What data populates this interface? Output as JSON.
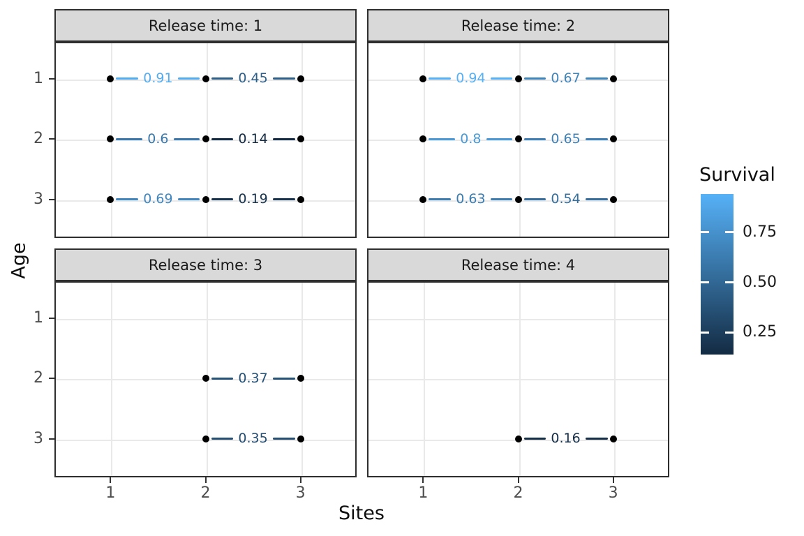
{
  "chart_data": {
    "type": "scatter",
    "subtype": "faceted labeled-segment plot (ggplot style)",
    "title": "",
    "xlabel": "Sites",
    "ylabel": "Age",
    "x_ticks": [
      "1",
      "2",
      "3"
    ],
    "y_ticks": [
      "1",
      "2",
      "3"
    ],
    "xlim": [
      0.41,
      3.59
    ],
    "ylim": [
      0.39,
      3.64
    ],
    "y_axis_direction": "age 1 at top, increasing downward",
    "grid": "major gridlines only, light grey on white panels",
    "facets": [
      {
        "label": "Release time: 1",
        "segments": [
          {
            "age": 1,
            "x1": 1,
            "x2": 2,
            "value": 0.91,
            "label": "0.91"
          },
          {
            "age": 1,
            "x1": 2,
            "x2": 3,
            "value": 0.45,
            "label": "0.45"
          },
          {
            "age": 2,
            "x1": 1,
            "x2": 2,
            "value": 0.6,
            "label": "0.6"
          },
          {
            "age": 2,
            "x1": 2,
            "x2": 3,
            "value": 0.14,
            "label": "0.14"
          },
          {
            "age": 3,
            "x1": 1,
            "x2": 2,
            "value": 0.69,
            "label": "0.69"
          },
          {
            "age": 3,
            "x1": 2,
            "x2": 3,
            "value": 0.19,
            "label": "0.19"
          }
        ]
      },
      {
        "label": "Release time: 2",
        "segments": [
          {
            "age": 1,
            "x1": 1,
            "x2": 2,
            "value": 0.94,
            "label": "0.94"
          },
          {
            "age": 1,
            "x1": 2,
            "x2": 3,
            "value": 0.67,
            "label": "0.67"
          },
          {
            "age": 2,
            "x1": 1,
            "x2": 2,
            "value": 0.8,
            "label": "0.8"
          },
          {
            "age": 2,
            "x1": 2,
            "x2": 3,
            "value": 0.65,
            "label": "0.65"
          },
          {
            "age": 3,
            "x1": 1,
            "x2": 2,
            "value": 0.63,
            "label": "0.63"
          },
          {
            "age": 3,
            "x1": 2,
            "x2": 3,
            "value": 0.54,
            "label": "0.54"
          }
        ]
      },
      {
        "label": "Release time: 3",
        "segments": [
          {
            "age": 2,
            "x1": 2,
            "x2": 3,
            "value": 0.37,
            "label": "0.37"
          },
          {
            "age": 3,
            "x1": 2,
            "x2": 3,
            "value": 0.35,
            "label": "0.35"
          }
        ]
      },
      {
        "label": "Release time: 4",
        "segments": [
          {
            "age": 3,
            "x1": 2,
            "x2": 3,
            "value": 0.16,
            "label": "0.16"
          }
        ]
      }
    ],
    "legend": {
      "title": "Survival",
      "position": "right",
      "tick_labels": [
        "0.75",
        "0.50",
        "0.25"
      ],
      "tick_values": [
        0.75,
        0.5,
        0.25
      ],
      "domain": [
        0.14,
        0.94
      ],
      "low_color": "#132B43",
      "high_color": "#56B1F7"
    },
    "colors": {
      "point": "#000000",
      "grid": "#e9e9e9",
      "panel_border": "#2e2e2e",
      "strip_background": "#d9d9d9",
      "axis_text": "#4d4d4d",
      "title_text": "#0d0d0d"
    }
  }
}
